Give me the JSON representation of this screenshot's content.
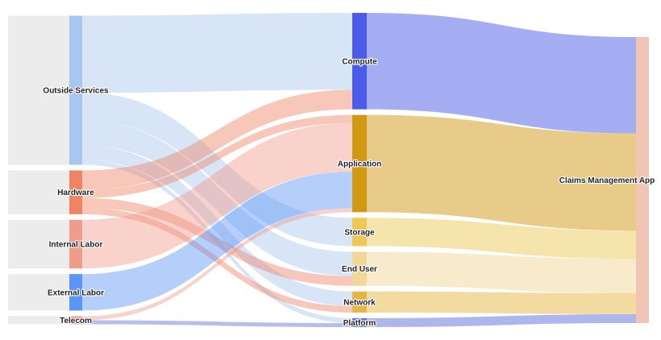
{
  "chart_data": {
    "type": "sankey",
    "title": "",
    "nodes": [
      {
        "id": "outside",
        "label": "Outside Services",
        "color": "#a9c6ee",
        "column": 0
      },
      {
        "id": "hardware",
        "label": "Hardware",
        "color": "#ee8366",
        "column": 0
      },
      {
        "id": "internal",
        "label": "Internal Labor",
        "color": "#ef9c8c",
        "column": 0
      },
      {
        "id": "external",
        "label": "External Labor",
        "color": "#5b95f5",
        "column": 0
      },
      {
        "id": "telecom",
        "label": "Telecom",
        "color": "#ef9c8c",
        "column": 0
      },
      {
        "id": "compute",
        "label": "Compute",
        "color": "#4c5ce8",
        "column": 1
      },
      {
        "id": "application",
        "label": "Application",
        "color": "#d19812",
        "column": 1
      },
      {
        "id": "storage",
        "label": "Storage",
        "color": "#ecc957",
        "column": 1
      },
      {
        "id": "enduser",
        "label": "End User",
        "color": "#efd898",
        "column": 1
      },
      {
        "id": "network",
        "label": "Network",
        "color": "#e7b544",
        "column": 1
      },
      {
        "id": "platform",
        "label": "Platform",
        "color": "#5c6fdc",
        "column": 1
      },
      {
        "id": "claims",
        "label": "Claims Management App",
        "color": "#f1c4b6",
        "column": 2
      }
    ],
    "links": [
      {
        "source": "outside",
        "target": "compute",
        "value": 95,
        "color": "#a9c6ee"
      },
      {
        "source": "outside",
        "target": "storage",
        "value": 35,
        "color": "#a9c6ee"
      },
      {
        "source": "outside",
        "target": "network",
        "value": 12,
        "color": "#a9c6ee"
      },
      {
        "source": "outside",
        "target": "end-user-placeholder",
        "value": 0,
        "color": "#a9c6ee"
      },
      {
        "source": "outside",
        "target": "platform",
        "value": 6,
        "color": "#a9c6ee"
      },
      {
        "source": "outside",
        "target": "network",
        "value": 6,
        "color": "#a9c6ee"
      },
      {
        "source": "outside",
        "target": "enduser",
        "value": 30,
        "color": "#a9c6ee"
      },
      {
        "source": "hardware",
        "target": "compute",
        "value": 24,
        "color": "#ee8366"
      },
      {
        "source": "hardware",
        "target": "application",
        "value": 10,
        "color": "#ee8366"
      },
      {
        "source": "hardware",
        "target": "network",
        "value": 8,
        "color": "#ee8366"
      },
      {
        "source": "hardware",
        "target": "enduser",
        "value": 12,
        "color": "#ee8366"
      },
      {
        "source": "internal",
        "target": "application",
        "value": 60,
        "color": "#ef9c8c"
      },
      {
        "source": "external",
        "target": "application",
        "value": 45,
        "color": "#5b95f5"
      },
      {
        "source": "telecom",
        "target": "platform",
        "value": 5,
        "color": "#5c6fdc"
      },
      {
        "source": "telecom",
        "target": "application",
        "value": 5,
        "color": "#ef9c8c"
      },
      {
        "source": "compute",
        "target": "claims",
        "value": 119,
        "color": "#4c5ce8"
      },
      {
        "source": "application",
        "target": "claims",
        "value": 120,
        "color": "#d19812"
      },
      {
        "source": "storage",
        "target": "claims",
        "value": 35,
        "color": "#ecc957"
      },
      {
        "source": "enduser",
        "target": "claims",
        "value": 42,
        "color": "#efd898"
      },
      {
        "source": "network",
        "target": "claims",
        "value": 26,
        "color": "#e7b544"
      },
      {
        "source": "platform",
        "target": "claims",
        "value": 11,
        "color": "#5c6fdc"
      }
    ]
  }
}
